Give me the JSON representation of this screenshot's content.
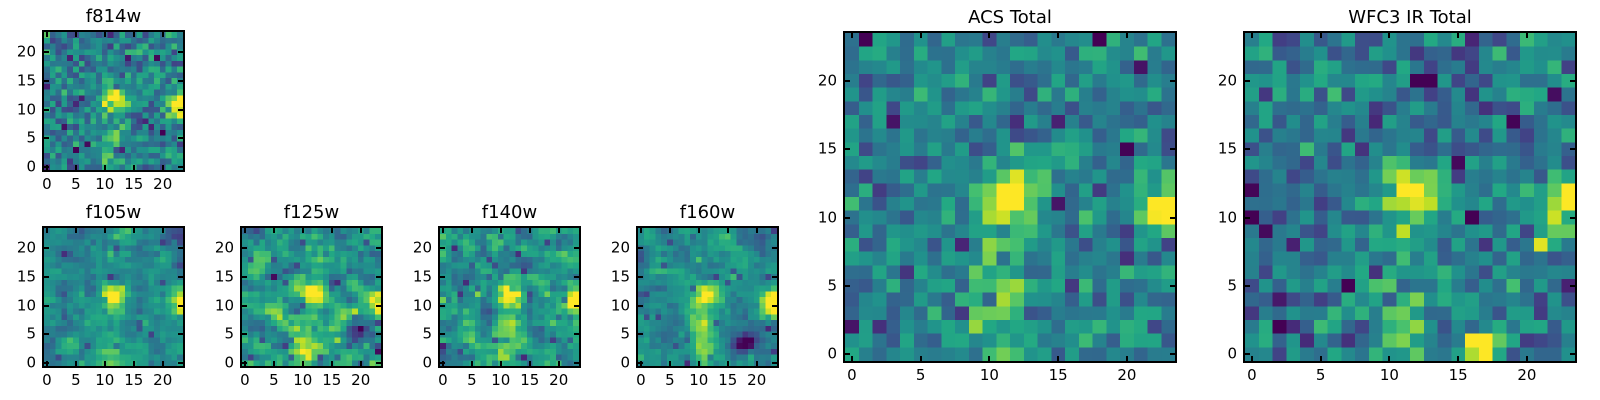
{
  "figure": {
    "background_color": "#ffffff",
    "axis_color": "#000000",
    "text_color": "#000000"
  },
  "colormap": {
    "name": "viridis",
    "stops": [
      "#440154",
      "#482475",
      "#414487",
      "#355f8d",
      "#2a788e",
      "#21918c",
      "#22a884",
      "#44bf70",
      "#7ad151",
      "#bddf26",
      "#fde725"
    ]
  },
  "chart_data": {
    "type": "heatmap",
    "description": "Seven image cutout panels of the same source rendered with the viridis colormap: five HST filter stamps (f814w, f105w, f125w, f140w, f160w) and two stacked images (ACS Total, WFC3 IR Total).",
    "shared": {
      "grid_size": 24,
      "xlim": [
        -0.5,
        23.5
      ],
      "ylim": [
        -0.5,
        23.5
      ],
      "xticks": [
        0,
        5,
        10,
        15,
        20
      ],
      "yticks": [
        0,
        5,
        10,
        15,
        20
      ],
      "grid": false,
      "legend": false,
      "colormap": "viridis",
      "sources": [
        {
          "x": 11.6,
          "y": 12.0,
          "sx": 1.5,
          "sy": 1.3,
          "amp": 0.72,
          "label": "bright central source near (12, 12)"
        },
        {
          "x": 23.4,
          "y": 10.6,
          "sx": 1.7,
          "sy": 1.5,
          "amp": 0.78,
          "label": "bright source at right edge near (23, 11)"
        },
        {
          "x": 11.0,
          "y": 6.6,
          "sx": 1.7,
          "sy": 2.6,
          "amp": 0.26,
          "label": "faint plume below center"
        },
        {
          "x": 10.9,
          "y": 1.2,
          "sx": 1.5,
          "sy": 1.8,
          "amp": 0.28,
          "label": "plume tail near bottom"
        }
      ]
    },
    "panels": [
      {
        "id": "f814w",
        "title": "f814w",
        "seed": 101,
        "base": 0.44,
        "noise": 0.3,
        "smooth": 0,
        "jitter": 0,
        "speckle_p": 0.07,
        "speckle_amp": -0.3,
        "extra_sources": [],
        "features": "sharp per-pixel noise with scattered dark pixels"
      },
      {
        "id": "f105w",
        "title": "f105w",
        "seed": 202,
        "base": 0.46,
        "noise": 0.5,
        "smooth": 1,
        "jitter": 0.08,
        "speckle_p": 0.035,
        "speckle_amp": -0.22,
        "extra_sources": [],
        "features": "smooth correlated noise, bright blob and plume"
      },
      {
        "id": "f125w",
        "title": "f125w",
        "seed": 303,
        "base": 0.5,
        "noise": 0.75,
        "smooth": 1,
        "jitter": 0.12,
        "speckle_p": 0.05,
        "speckle_amp": -0.26,
        "extra_sources": [],
        "features": "brighter mottled background"
      },
      {
        "id": "f140w",
        "title": "f140w",
        "seed": 404,
        "base": 0.48,
        "noise": 0.7,
        "smooth": 1,
        "jitter": 0.12,
        "speckle_p": 0.05,
        "speckle_amp": -0.26,
        "extra_sources": [],
        "features": "mottled green background with central glow"
      },
      {
        "id": "f160w",
        "title": "f160w",
        "seed": 505,
        "base": 0.46,
        "noise": 0.5,
        "smooth": 1,
        "jitter": 0.08,
        "speckle_p": 0.04,
        "speckle_amp": -0.24,
        "extra_sources": [
          {
            "x": 18.0,
            "y": 3.3,
            "sx": 1.5,
            "sy": 1.2,
            "amp": -0.55,
            "label": "dark patch near (18, 3)"
          }
        ],
        "features": "dark patch lower right"
      },
      {
        "id": "acs-total",
        "title": "ACS Total",
        "seed": 606,
        "base": 0.44,
        "noise": 0.28,
        "smooth": 0,
        "jitter": 0,
        "speckle_p": 0.05,
        "speckle_amp": -0.28,
        "extra_sources": [],
        "features": "large stamp, crisp per-pixel noise"
      },
      {
        "id": "wfc3-ir-total",
        "title": "WFC3 IR Total",
        "seed": 707,
        "base": 0.42,
        "noise": 0.3,
        "smooth": 0,
        "jitter": 0,
        "speckle_p": 0.07,
        "speckle_amp": -0.28,
        "extra_sources": [
          {
            "x": 16.6,
            "y": 0.6,
            "sx": 0.8,
            "sy": 0.7,
            "amp": 1.0,
            "label": "bright yellow knot near (16.5, 0.5)"
          }
        ],
        "features": "bright knot at bottom, scattered dark pixels"
      }
    ]
  }
}
